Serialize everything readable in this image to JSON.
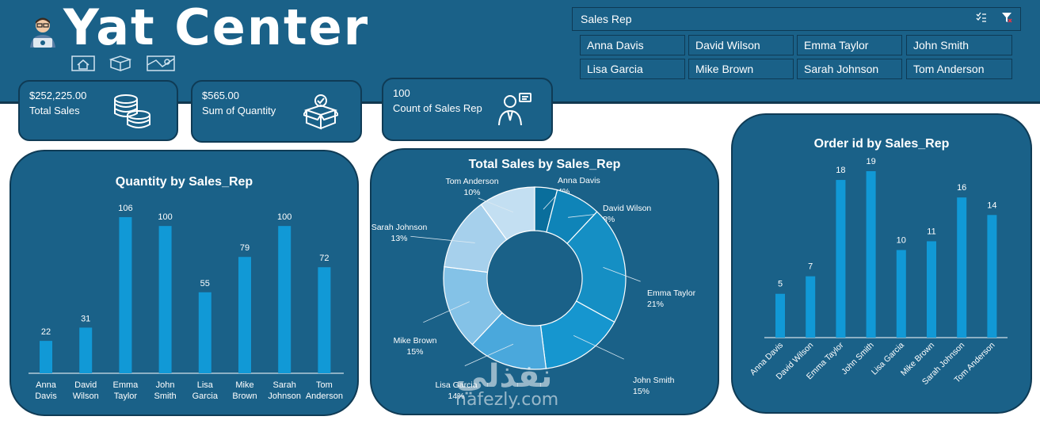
{
  "header": {
    "title": "Yat Center"
  },
  "slicer": {
    "title": "Sales Rep",
    "items": [
      "Anna Davis",
      "David Wilson",
      "Emma Taylor",
      "John Smith",
      "Lisa Garcia",
      "Mike Brown",
      "Sarah Johnson",
      "Tom Anderson"
    ]
  },
  "kpis": [
    {
      "value": "$252,225.00",
      "label": "Total Sales"
    },
    {
      "value": "$565.00",
      "label": "Sum of Quantity"
    },
    {
      "value": "100",
      "label": "Count of Sales Rep"
    }
  ],
  "colors": {
    "panel": "#1a6188",
    "bar": "#1199d6",
    "border": "#0f3b55"
  },
  "watermark": {
    "big": "نفذلي",
    "small": "nafezly.com"
  },
  "chart_data": [
    {
      "type": "bar",
      "title": "Quantity by Sales_Rep",
      "categories": [
        "Anna Davis",
        "David Wilson",
        "Emma Taylor",
        "John Smith",
        "Lisa Garcia",
        "Mike Brown",
        "Sarah Johnson",
        "Tom Anderson"
      ],
      "category_lines": [
        [
          "Anna",
          "Davis"
        ],
        [
          "David",
          "Wilson"
        ],
        [
          "Emma",
          "Taylor"
        ],
        [
          "John",
          "Smith"
        ],
        [
          "Lisa",
          "Garcia"
        ],
        [
          "Mike",
          "Brown"
        ],
        [
          "Sarah",
          "Johnson"
        ],
        [
          "Tom",
          "Anderson"
        ]
      ],
      "values": [
        22,
        31,
        106,
        100,
        55,
        79,
        100,
        72
      ],
      "ylim": [
        0,
        106
      ]
    },
    {
      "type": "pie",
      "title": "Total Sales by Sales_Rep",
      "labels": [
        "Anna Davis",
        "David Wilson",
        "Emma Taylor",
        "John Smith",
        "Lisa Garcia",
        "Mike Brown",
        "Sarah Johnson",
        "Tom Anderson"
      ],
      "values": [
        4,
        8,
        21,
        15,
        14,
        15,
        13,
        10
      ],
      "percent_labels": [
        "4%",
        "8%",
        "21%",
        "15%",
        "14%",
        "15%",
        "13%",
        "10%"
      ],
      "colors": [
        "#0a6e9c",
        "#0f84b8",
        "#158fc4",
        "#1696cf",
        "#4aa8dc",
        "#84c2e7",
        "#a6d0ec",
        "#c3dff2"
      ],
      "donut": true
    },
    {
      "type": "bar",
      "title": "Order id by Sales_Rep",
      "categories": [
        "Anna Davis",
        "David Wilson",
        "Emma Taylor",
        "John Smith",
        "Lisa Garcia",
        "Mike Brown",
        "Sarah Johnson",
        "Tom Anderson"
      ],
      "values": [
        5,
        7,
        18,
        19,
        10,
        11,
        16,
        14
      ],
      "ylim": [
        0,
        19
      ]
    }
  ]
}
